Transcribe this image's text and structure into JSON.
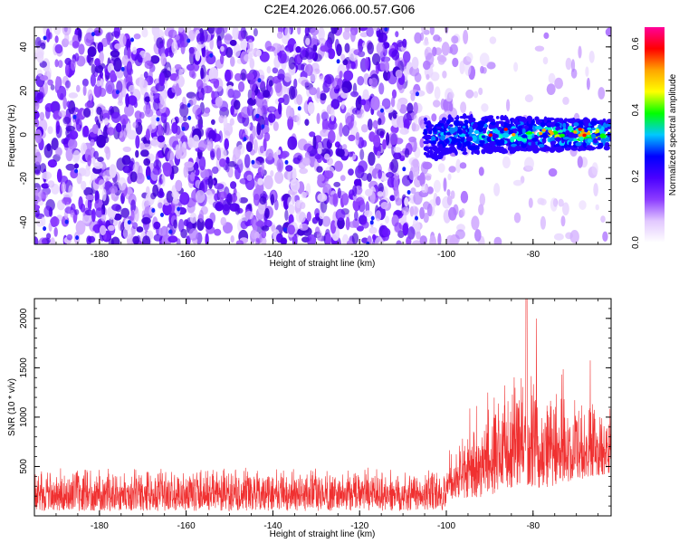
{
  "title": "C2E4.2026.066.00.57.G06",
  "chart_data": [
    {
      "type": "heatmap",
      "name": "spectrogram",
      "xlabel": "Height of straight line (km)",
      "ylabel": "Frequency (Hz)",
      "xlim": [
        -195,
        -62
      ],
      "ylim": [
        -50,
        49
      ],
      "xticks": [
        -180,
        -160,
        -140,
        -120,
        -100,
        -80
      ],
      "yticks": [
        -40,
        -20,
        0,
        20,
        40
      ],
      "signal_band": {
        "x_start": -105,
        "x_end": -62,
        "freq_center": 0,
        "freq_halfwidth": 7
      },
      "colorbar": {
        "label": "Normalized spectral amplitude",
        "range": [
          0.0,
          0.65
        ],
        "ticks": [
          0.0,
          0.2,
          0.4,
          0.6
        ],
        "tick_labels": [
          "0.0",
          "0.2",
          "0.4",
          "0.6"
        ],
        "colors": [
          "#ffffff",
          "#e2c8ff",
          "#8c3cff",
          "#4a00ff",
          "#0000ff",
          "#00c8ff",
          "#00ff00",
          "#ffff00",
          "#ffa500",
          "#ff0000",
          "#ff0099"
        ]
      }
    },
    {
      "type": "line",
      "name": "snr",
      "xlabel": "Height of straight line (km)",
      "ylabel": "SNR (10 * v/v)",
      "xlim": [
        -195,
        -62
      ],
      "ylim": [
        0,
        2200
      ],
      "xticks": [
        -180,
        -160,
        -140,
        -120,
        -100,
        -80
      ],
      "yticks": [
        500,
        1000,
        1500,
        2000
      ],
      "color": "#f03030",
      "baseline": {
        "min": 50,
        "max": 500,
        "mean": 230
      },
      "segments": [
        {
          "x": -195,
          "mean": 230,
          "amp": 260
        },
        {
          "x": -110,
          "mean": 250,
          "amp": 300
        },
        {
          "x": -100,
          "mean": 320,
          "amp": 420
        },
        {
          "x": -92,
          "mean": 500,
          "amp": 900
        },
        {
          "x": -86,
          "mean": 650,
          "amp": 1100
        },
        {
          "x": -82,
          "mean": 800,
          "amp": 1400
        },
        {
          "x": -78,
          "mean": 700,
          "amp": 1200
        },
        {
          "x": -72,
          "mean": 650,
          "amp": 900
        },
        {
          "x": -66,
          "mean": 700,
          "amp": 850
        },
        {
          "x": -62,
          "mean": 650,
          "amp": 700
        }
      ],
      "peak": {
        "x": -81.5,
        "y": 2200
      }
    }
  ]
}
